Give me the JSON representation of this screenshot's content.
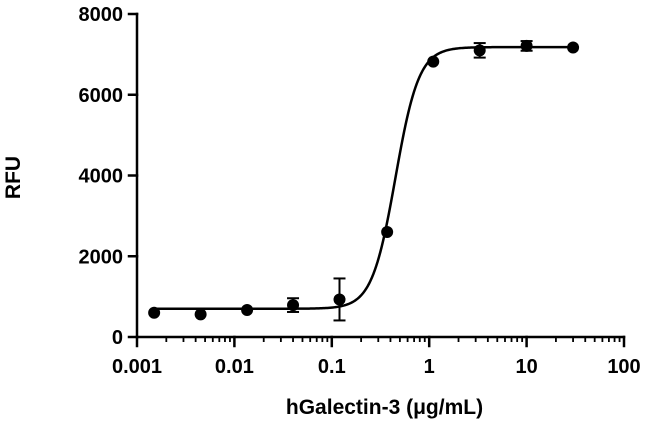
{
  "chart_data": {
    "type": "scatter",
    "xlabel": "hGalectin-3 (μg/mL)",
    "ylabel": "RFU",
    "xscale": "log",
    "xlim": [
      0.001,
      100
    ],
    "ylim": [
      0,
      8000
    ],
    "x_ticks": [
      "0.001",
      "0.01",
      "0.1",
      "1",
      "10",
      "100"
    ],
    "y_ticks": [
      "0",
      "2000",
      "4000",
      "6000",
      "8000"
    ],
    "grid": false,
    "legend": "none",
    "series": [
      {
        "points": [
          {
            "x": 0.0015,
            "y": 600,
            "err": 0
          },
          {
            "x": 0.0045,
            "y": 560,
            "err": 0
          },
          {
            "x": 0.0135,
            "y": 670,
            "err": 0
          },
          {
            "x": 0.04,
            "y": 790,
            "err": 170
          },
          {
            "x": 0.12,
            "y": 930,
            "err": 520
          },
          {
            "x": 0.37,
            "y": 2600,
            "err": 0
          },
          {
            "x": 1.1,
            "y": 6820,
            "err": 0
          },
          {
            "x": 3.3,
            "y": 7100,
            "err": 180
          },
          {
            "x": 10,
            "y": 7210,
            "err": 120
          },
          {
            "x": 30,
            "y": 7170,
            "err": 0
          }
        ],
        "fit": {
          "model": "4PL",
          "bottom": 700,
          "top": 7180,
          "ec50": 0.45,
          "hill": 3.6
        },
        "color": "#000000"
      }
    ]
  }
}
